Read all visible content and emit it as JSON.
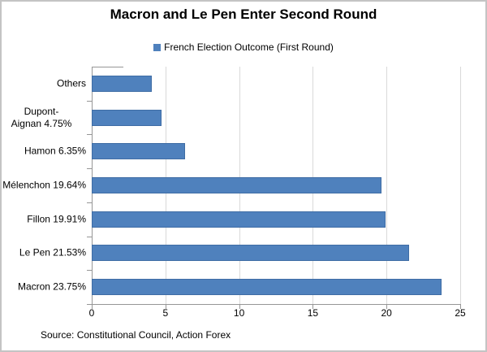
{
  "chart_data": {
    "type": "bar",
    "orientation": "horizontal",
    "title": "Macron and Le Pen Enter Second Round",
    "legend_label": "French Election Outcome (First Round)",
    "legend_position": "top-center",
    "categories": [
      "Others",
      "Dupont-Aignan 4.75%",
      "Hamon 6.35%",
      "Mélenchon 19.64%",
      "Fillon 19.91%",
      "Le Pen 21.53%",
      "Macron 23.75%"
    ],
    "category_label_lines": [
      [
        "Others"
      ],
      [
        "Dupont-",
        "Aignan 4.75%"
      ],
      [
        "Hamon 6.35%"
      ],
      [
        "Mélenchon 19.64%"
      ],
      [
        "Fillon 19.91%"
      ],
      [
        "Le Pen 21.53%"
      ],
      [
        "Macron 23.75%"
      ]
    ],
    "values": [
      4.07,
      4.75,
      6.35,
      19.64,
      19.91,
      21.53,
      23.75
    ],
    "xlim": [
      0,
      25
    ],
    "xticks": [
      0,
      5,
      10,
      15,
      20,
      25
    ],
    "grid": "vertical-major",
    "source_note": "Source: Constitutional Council, Action Forex",
    "colors": {
      "bar_fill": "#4F81BD",
      "bar_border": "#3F6DA5",
      "gridline": "#D9D9D9",
      "axis": "#969696",
      "frame_border": "#C4C4C4",
      "text": "#000000"
    }
  }
}
